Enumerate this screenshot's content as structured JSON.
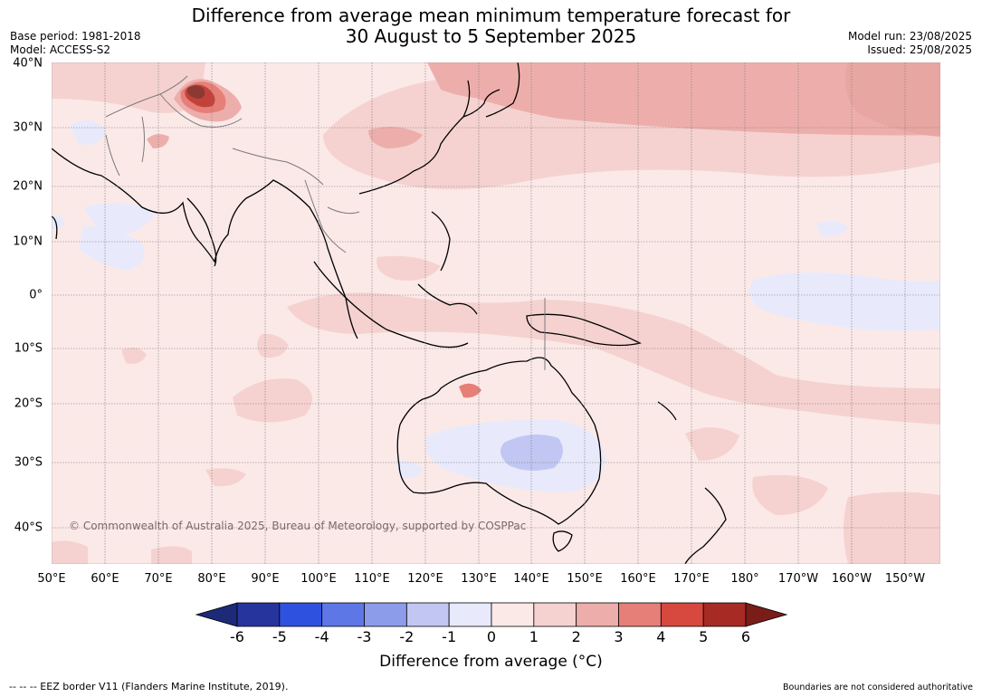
{
  "title": {
    "line1": "Difference from average mean minimum temperature forecast for",
    "line2": "30 August to 5 September 2025"
  },
  "meta": {
    "base_period": "Base period: 1981-2018",
    "model": "Model: ACCESS-S2",
    "model_run": "Model run: 23/08/2025",
    "issued": "Issued: 25/08/2025"
  },
  "map": {
    "lat_labels": [
      "40°N",
      "30°N",
      "20°N",
      "10°N",
      "0°",
      "10°S",
      "20°S",
      "30°S",
      "40°S"
    ],
    "lon_labels": [
      "50°E",
      "60°E",
      "70°E",
      "80°E",
      "90°E",
      "100°E",
      "110°E",
      "120°E",
      "130°E",
      "140°E",
      "150°E",
      "160°E",
      "170°E",
      "180°",
      "170°W",
      "160°W",
      "150°W"
    ],
    "copyright": "© Commonwealth of Australia 2025, Bureau of Meteorology, supported by COSPPac"
  },
  "colorbar": {
    "ticks": [
      "-6",
      "-5",
      "-4",
      "-3",
      "-2",
      "-1",
      "0",
      "1",
      "2",
      "3",
      "4",
      "5",
      "6"
    ],
    "colors": [
      "#26349e",
      "#2f51e0",
      "#5e77e6",
      "#8c9ceb",
      "#c1c7f2",
      "#e8eafb",
      "#fbe9e8",
      "#f5d2d0",
      "#edaeab",
      "#e57f78",
      "#d7483e",
      "#a82a24"
    ],
    "under_color": "#1c2a78",
    "over_color": "#7a1d18",
    "label": "Difference from average (°C)"
  },
  "footer": {
    "eez": "--  --  -- EEZ border V11 (Flanders Marine Institute, 2019).",
    "disclaimer": "Boundaries are not considered authoritative"
  }
}
